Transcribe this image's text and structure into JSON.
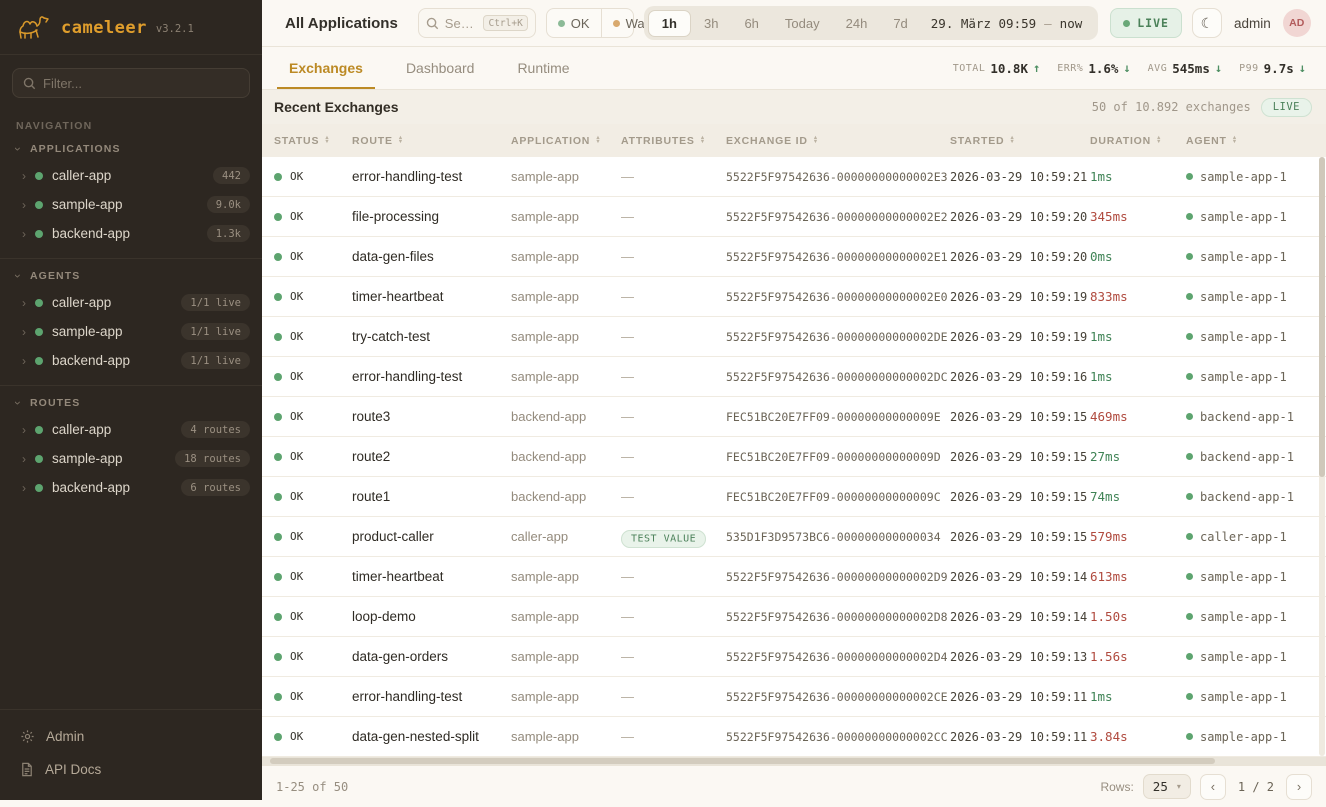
{
  "app": {
    "name": "cameleer",
    "version": "v3.2.1"
  },
  "colors": {
    "accent": "#E09E2C",
    "ok_green": "#5DA46F",
    "slow_red": "#B04A3E",
    "live_green": "#4B8159",
    "sidebar_bg": "#2D2721"
  },
  "sidebar": {
    "filter_placeholder": "Filter...",
    "nav_label": "NAVIGATION",
    "sections": [
      {
        "label": "APPLICATIONS",
        "items": [
          {
            "name": "caller-app",
            "badge": "442"
          },
          {
            "name": "sample-app",
            "badge": "9.0k"
          },
          {
            "name": "backend-app",
            "badge": "1.3k"
          }
        ]
      },
      {
        "label": "AGENTS",
        "items": [
          {
            "name": "caller-app",
            "badge": "1/1 live"
          },
          {
            "name": "sample-app",
            "badge": "1/1 live"
          },
          {
            "name": "backend-app",
            "badge": "1/1 live"
          }
        ]
      },
      {
        "label": "ROUTES",
        "items": [
          {
            "name": "caller-app",
            "badge": "4 routes"
          },
          {
            "name": "sample-app",
            "badge": "18 routes"
          },
          {
            "name": "backend-app",
            "badge": "6 routes"
          }
        ]
      }
    ],
    "footer_items": [
      {
        "label": "Admin"
      },
      {
        "label": "API Docs"
      }
    ]
  },
  "topbar": {
    "scope": "All Applications",
    "search": {
      "placeholder": "Se…",
      "shortcut": "Ctrl+K"
    },
    "status_filters": [
      {
        "label": "OK"
      },
      {
        "label": "Wa"
      }
    ],
    "time_ranges": [
      "1h",
      "3h",
      "6h",
      "Today",
      "24h",
      "7d"
    ],
    "active_range": "1h",
    "date_range": {
      "from": "29. März 09:59",
      "sep": "–",
      "to": "now"
    },
    "live_label": "LIVE",
    "user": {
      "name": "admin",
      "initials": "AD"
    }
  },
  "tabs": [
    {
      "label": "Exchanges"
    },
    {
      "label": "Dashboard"
    },
    {
      "label": "Runtime"
    }
  ],
  "stats": [
    {
      "label": "TOTAL",
      "value": "10.8K",
      "arrow": "↑"
    },
    {
      "label": "ERR%",
      "value": "1.6%",
      "arrow": "↓"
    },
    {
      "label": "AVG",
      "value": "545ms",
      "arrow": "↓"
    },
    {
      "label": "P99",
      "value": "9.7s",
      "arrow": "↓"
    }
  ],
  "table": {
    "title": "Recent Exchanges",
    "summary": "50 of 10.892 exchanges",
    "live_badge": "LIVE",
    "columns": [
      "STATUS",
      "ROUTE",
      "APPLICATION",
      "ATTRIBUTES",
      "EXCHANGE ID",
      "STARTED",
      "DURATION",
      "AGENT"
    ],
    "rows": [
      {
        "status": "OK",
        "route": "error-handling-test",
        "application": "sample-app",
        "attributes": "—",
        "exchange_id": "5522F5F97542636-00000000000002E3",
        "started": "2026-03-29 10:59:21",
        "duration": "1ms",
        "slow": false,
        "agent": "sample-app-1"
      },
      {
        "status": "OK",
        "route": "file-processing",
        "application": "sample-app",
        "attributes": "—",
        "exchange_id": "5522F5F97542636-00000000000002E2",
        "started": "2026-03-29 10:59:20",
        "duration": "345ms",
        "slow": true,
        "agent": "sample-app-1"
      },
      {
        "status": "OK",
        "route": "data-gen-files",
        "application": "sample-app",
        "attributes": "—",
        "exchange_id": "5522F5F97542636-00000000000002E1",
        "started": "2026-03-29 10:59:20",
        "duration": "0ms",
        "slow": false,
        "agent": "sample-app-1"
      },
      {
        "status": "OK",
        "route": "timer-heartbeat",
        "application": "sample-app",
        "attributes": "—",
        "exchange_id": "5522F5F97542636-00000000000002E0",
        "started": "2026-03-29 10:59:19",
        "duration": "833ms",
        "slow": true,
        "agent": "sample-app-1"
      },
      {
        "status": "OK",
        "route": "try-catch-test",
        "application": "sample-app",
        "attributes": "—",
        "exchange_id": "5522F5F97542636-00000000000002DE",
        "started": "2026-03-29 10:59:19",
        "duration": "1ms",
        "slow": false,
        "agent": "sample-app-1"
      },
      {
        "status": "OK",
        "route": "error-handling-test",
        "application": "sample-app",
        "attributes": "—",
        "exchange_id": "5522F5F97542636-00000000000002DC",
        "started": "2026-03-29 10:59:16",
        "duration": "1ms",
        "slow": false,
        "agent": "sample-app-1"
      },
      {
        "status": "OK",
        "route": "route3",
        "application": "backend-app",
        "attributes": "—",
        "exchange_id": "FEC51BC20E7FF09-00000000000009E",
        "started": "2026-03-29 10:59:15",
        "duration": "469ms",
        "slow": true,
        "agent": "backend-app-1"
      },
      {
        "status": "OK",
        "route": "route2",
        "application": "backend-app",
        "attributes": "—",
        "exchange_id": "FEC51BC20E7FF09-00000000000009D",
        "started": "2026-03-29 10:59:15",
        "duration": "27ms",
        "slow": false,
        "agent": "backend-app-1"
      },
      {
        "status": "OK",
        "route": "route1",
        "application": "backend-app",
        "attributes": "—",
        "exchange_id": "FEC51BC20E7FF09-00000000000009C",
        "started": "2026-03-29 10:59:15",
        "duration": "74ms",
        "slow": false,
        "agent": "backend-app-1"
      },
      {
        "status": "OK",
        "route": "product-caller",
        "application": "caller-app",
        "attributes": "",
        "attribute_badge": "TEST VALUE",
        "exchange_id": "535D1F3D9573BC6-000000000000034",
        "started": "2026-03-29 10:59:15",
        "duration": "579ms",
        "slow": true,
        "agent": "caller-app-1"
      },
      {
        "status": "OK",
        "route": "timer-heartbeat",
        "application": "sample-app",
        "attributes": "—",
        "exchange_id": "5522F5F97542636-00000000000002D9",
        "started": "2026-03-29 10:59:14",
        "duration": "613ms",
        "slow": true,
        "agent": "sample-app-1"
      },
      {
        "status": "OK",
        "route": "loop-demo",
        "application": "sample-app",
        "attributes": "—",
        "exchange_id": "5522F5F97542636-00000000000002D8",
        "started": "2026-03-29 10:59:14",
        "duration": "1.50s",
        "slow": true,
        "agent": "sample-app-1"
      },
      {
        "status": "OK",
        "route": "data-gen-orders",
        "application": "sample-app",
        "attributes": "—",
        "exchange_id": "5522F5F97542636-00000000000002D4",
        "started": "2026-03-29 10:59:13",
        "duration": "1.56s",
        "slow": true,
        "agent": "sample-app-1"
      },
      {
        "status": "OK",
        "route": "error-handling-test",
        "application": "sample-app",
        "attributes": "—",
        "exchange_id": "5522F5F97542636-00000000000002CE",
        "started": "2026-03-29 10:59:11",
        "duration": "1ms",
        "slow": false,
        "agent": "sample-app-1"
      },
      {
        "status": "OK",
        "route": "data-gen-nested-split",
        "application": "sample-app",
        "attributes": "—",
        "exchange_id": "5522F5F97542636-00000000000002CC",
        "started": "2026-03-29 10:59:11",
        "duration": "3.84s",
        "slow": true,
        "agent": "sample-app-1"
      }
    ]
  },
  "footer": {
    "range": "1-25 of 50",
    "rows_label": "Rows:",
    "rows_value": "25",
    "prev": "‹",
    "page": "1 / 2",
    "next": "›"
  }
}
